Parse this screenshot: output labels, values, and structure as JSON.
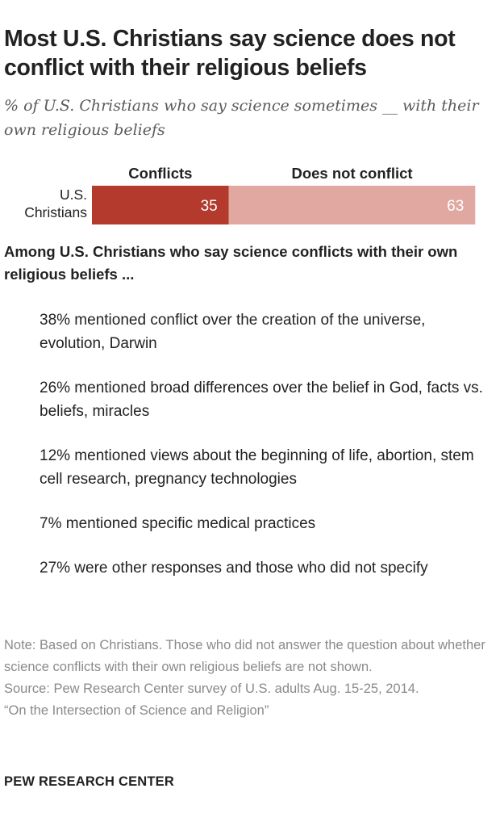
{
  "header": {
    "title": "Most U.S. Christians say science does not conflict with their religious beliefs",
    "subtitle": "% of U.S. Christians who say science sometimes __ with their own religious beliefs"
  },
  "chart_data": {
    "type": "bar",
    "orientation": "horizontal",
    "stacked": true,
    "categories": [
      "U.S. Christians"
    ],
    "series": [
      {
        "name": "Conflicts",
        "values": [
          35
        ],
        "color": "#b33a2c"
      },
      {
        "name": "Does not conflict",
        "values": [
          63
        ],
        "color": "#e0a8a1"
      }
    ],
    "xlim": [
      0,
      100
    ],
    "grid": false,
    "legend": "top"
  },
  "breakdown": {
    "heading": "Among U.S. Christians who say science conflicts with their own religious beliefs ...",
    "items": [
      "38% mentioned conflict over the creation of the universe, evolution, Darwin",
      "26% mentioned broad differences over the belief in God, facts vs. beliefs, miracles",
      "12% mentioned views about the beginning of life, abortion, stem cell research, pregnancy technologies",
      "7% mentioned specific medical practices",
      "27% were other responses and those who did not specify"
    ]
  },
  "footer": {
    "note": "Note: Based on Christians. Those who did not answer the question about whether science conflicts with their own religious beliefs are not shown.",
    "source": "Source: Pew Research Center survey of U.S. adults Aug. 15-25, 2014.",
    "report": "“On the Intersection of Science and Religion”",
    "brand": "PEW RESEARCH CENTER"
  }
}
